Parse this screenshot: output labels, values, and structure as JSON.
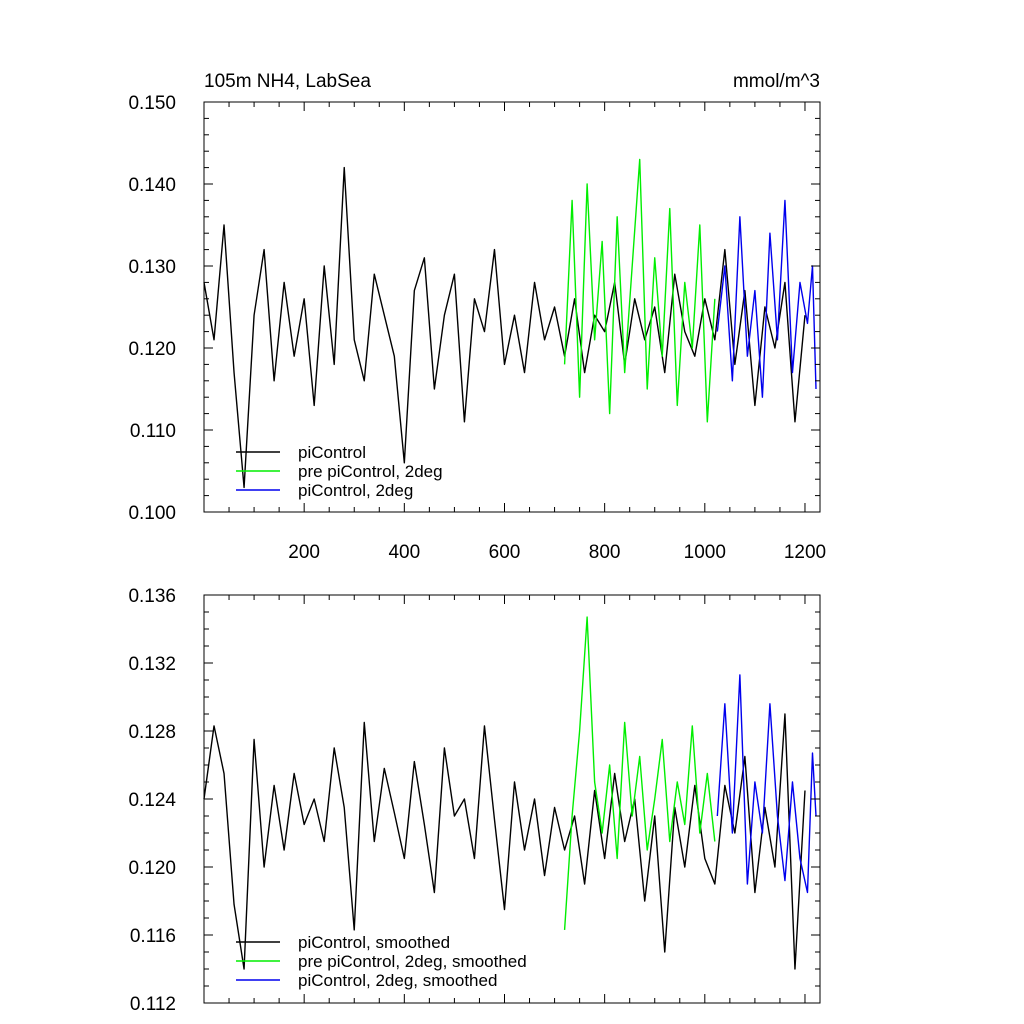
{
  "chart_data": [
    {
      "type": "line",
      "title_left": "105m NH4, LabSea",
      "title_right": "mmol/m^3",
      "xlabel": "",
      "ylabel": "",
      "xlim": [
        0,
        1230
      ],
      "ylim": [
        0.1,
        0.15
      ],
      "xticks": [
        200,
        400,
        600,
        800,
        1000,
        1200
      ],
      "xtick_labels": [
        "200",
        "400",
        "600",
        "800",
        "1000",
        "1200"
      ],
      "yticks": [
        0.1,
        0.11,
        0.12,
        0.13,
        0.14,
        0.15
      ],
      "ytick_labels": [
        "0.100",
        "0.110",
        "0.120",
        "0.130",
        "0.140",
        "0.150"
      ],
      "legend_position": "bottom-left",
      "series": [
        {
          "name": "piControl",
          "color": "#000000",
          "x": [
            0,
            20,
            40,
            60,
            80,
            100,
            120,
            140,
            160,
            180,
            200,
            220,
            240,
            260,
            280,
            300,
            320,
            340,
            360,
            380,
            400,
            420,
            440,
            460,
            480,
            500,
            520,
            540,
            560,
            580,
            600,
            620,
            640,
            660,
            680,
            700,
            720,
            740,
            760,
            780,
            800,
            820,
            840,
            860,
            880,
            900,
            920,
            940,
            960,
            980,
            1000,
            1020,
            1040,
            1060,
            1080,
            1100,
            1120,
            1140,
            1160,
            1180,
            1200
          ],
          "values": [
            0.128,
            0.121,
            0.135,
            0.117,
            0.103,
            0.124,
            0.132,
            0.116,
            0.128,
            0.119,
            0.126,
            0.113,
            0.13,
            0.118,
            0.142,
            0.121,
            0.116,
            0.129,
            0.124,
            0.119,
            0.106,
            0.127,
            0.131,
            0.115,
            0.124,
            0.129,
            0.111,
            0.126,
            0.122,
            0.132,
            0.118,
            0.124,
            0.117,
            0.128,
            0.121,
            0.125,
            0.119,
            0.126,
            0.117,
            0.124,
            0.122,
            0.128,
            0.118,
            0.126,
            0.121,
            0.125,
            0.117,
            0.129,
            0.122,
            0.119,
            0.126,
            0.121,
            0.132,
            0.118,
            0.127,
            0.113,
            0.125,
            0.12,
            0.128,
            0.111,
            0.124
          ]
        },
        {
          "name": "pre piControl, 2deg",
          "color": "#00ee00",
          "x": [
            720,
            735,
            750,
            765,
            780,
            795,
            810,
            825,
            840,
            855,
            870,
            885,
            900,
            915,
            930,
            945,
            960,
            975,
            990,
            1005,
            1020
          ],
          "values": [
            0.118,
            0.138,
            0.114,
            0.14,
            0.121,
            0.133,
            0.112,
            0.136,
            0.117,
            0.13,
            0.143,
            0.115,
            0.131,
            0.119,
            0.137,
            0.113,
            0.128,
            0.12,
            0.135,
            0.111,
            0.126
          ]
        },
        {
          "name": "piControl, 2deg",
          "color": "#0000ee",
          "x": [
            1025,
            1040,
            1055,
            1070,
            1085,
            1100,
            1115,
            1130,
            1145,
            1160,
            1175,
            1190,
            1205,
            1215,
            1222
          ],
          "values": [
            0.122,
            0.13,
            0.116,
            0.136,
            0.119,
            0.127,
            0.114,
            0.134,
            0.121,
            0.138,
            0.117,
            0.128,
            0.123,
            0.13,
            0.115
          ]
        }
      ]
    },
    {
      "type": "line",
      "title_left": "",
      "title_right": "",
      "xlabel": "",
      "ylabel": "",
      "xlim": [
        0,
        1230
      ],
      "ylim": [
        0.112,
        0.136
      ],
      "xticks": [
        200,
        400,
        600,
        800,
        1000,
        1200
      ],
      "xtick_labels": [],
      "yticks": [
        0.112,
        0.116,
        0.12,
        0.124,
        0.128,
        0.132,
        0.136
      ],
      "ytick_labels": [
        "0.112",
        "0.116",
        "0.120",
        "0.124",
        "0.128",
        "0.132",
        "0.136"
      ],
      "legend_position": "bottom-left",
      "series": [
        {
          "name": "piControl, smoothed",
          "color": "#000000",
          "x": [
            0,
            20,
            40,
            60,
            80,
            100,
            120,
            140,
            160,
            180,
            200,
            220,
            240,
            260,
            280,
            300,
            320,
            340,
            360,
            380,
            400,
            420,
            440,
            460,
            480,
            500,
            520,
            540,
            560,
            580,
            600,
            620,
            640,
            660,
            680,
            700,
            720,
            740,
            760,
            780,
            800,
            820,
            840,
            860,
            880,
            900,
            920,
            940,
            960,
            980,
            1000,
            1020,
            1040,
            1060,
            1080,
            1100,
            1120,
            1140,
            1160,
            1180,
            1200
          ],
          "values": [
            0.124,
            0.1283,
            0.1255,
            0.1178,
            0.114,
            0.1275,
            0.12,
            0.1248,
            0.121,
            0.1255,
            0.1225,
            0.124,
            0.1215,
            0.127,
            0.1235,
            0.1163,
            0.1285,
            0.1215,
            0.1258,
            0.1232,
            0.1205,
            0.1262,
            0.1225,
            0.1185,
            0.127,
            0.123,
            0.124,
            0.1205,
            0.1283,
            0.1228,
            0.1175,
            0.125,
            0.121,
            0.124,
            0.1195,
            0.1235,
            0.121,
            0.123,
            0.119,
            0.1245,
            0.1205,
            0.1255,
            0.1215,
            0.124,
            0.118,
            0.123,
            0.115,
            0.1235,
            0.12,
            0.1248,
            0.1205,
            0.119,
            0.1248,
            0.122,
            0.1265,
            0.1185,
            0.1235,
            0.12,
            0.129,
            0.114,
            0.1245
          ]
        },
        {
          "name": "pre piControl, 2deg, smoothed",
          "color": "#00ee00",
          "x": [
            720,
            735,
            750,
            765,
            780,
            795,
            810,
            825,
            840,
            855,
            870,
            885,
            900,
            915,
            930,
            945,
            960,
            975,
            990,
            1005,
            1020
          ],
          "values": [
            0.1163,
            0.123,
            0.128,
            0.1347,
            0.125,
            0.122,
            0.126,
            0.1205,
            0.1285,
            0.123,
            0.1265,
            0.121,
            0.124,
            0.1275,
            0.1215,
            0.125,
            0.1225,
            0.1283,
            0.122,
            0.1255,
            0.1215
          ]
        },
        {
          "name": "piControl, 2deg, smoothed",
          "color": "#0000ee",
          "x": [
            1025,
            1040,
            1055,
            1070,
            1085,
            1100,
            1115,
            1130,
            1145,
            1160,
            1175,
            1190,
            1205,
            1215,
            1222
          ],
          "values": [
            0.123,
            0.1296,
            0.122,
            0.1313,
            0.119,
            0.125,
            0.122,
            0.1296,
            0.123,
            0.1192,
            0.125,
            0.1205,
            0.1185,
            0.1267,
            0.123
          ]
        }
      ]
    }
  ]
}
